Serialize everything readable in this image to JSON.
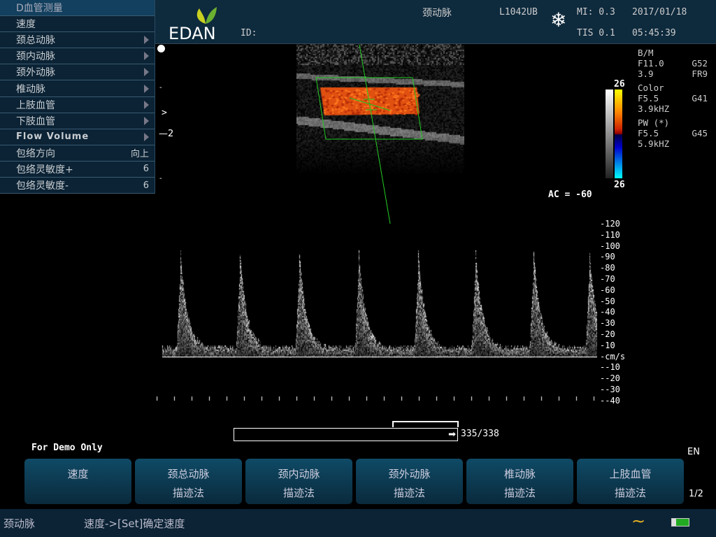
{
  "menu": {
    "title": "D血管测量",
    "items": [
      {
        "label": "速度",
        "arrow": false,
        "value": ""
      },
      {
        "label": "颈总动脉",
        "arrow": true,
        "value": ""
      },
      {
        "label": "颈内动脉",
        "arrow": true,
        "value": ""
      },
      {
        "label": "颈外动脉",
        "arrow": true,
        "value": ""
      },
      {
        "label": "椎动脉",
        "arrow": true,
        "value": ""
      },
      {
        "label": "上肢血管",
        "arrow": true,
        "value": ""
      },
      {
        "label": "下肢血管",
        "arrow": true,
        "value": ""
      },
      {
        "label": "Flow  Volume",
        "arrow": true,
        "value": ""
      },
      {
        "label": "包络方向",
        "arrow": false,
        "value": "向上"
      },
      {
        "label": "包络灵敏度+",
        "arrow": false,
        "value": "6"
      },
      {
        "label": "包络灵敏度-",
        "arrow": false,
        "value": "6"
      }
    ]
  },
  "header": {
    "logo": "EDAN",
    "id_label": "ID:",
    "exam": "颈动脉",
    "probe": "L1042UB",
    "mi": "MI: 0.3",
    "tis": "TIS 0.1",
    "date": "2017/01/18",
    "time": "05:45:39",
    "freeze_icon": "snowflake-icon"
  },
  "params": {
    "bm": "B/M",
    "bm_f": "F11.0",
    "bm_g": "G52",
    "bm_d": "3.9",
    "bm_fr": "FR9",
    "color": "Color",
    "color_f": "F5.5",
    "color_g": "G41",
    "color_prf": "3.9kHZ",
    "pw": "PW (*)",
    "pw_f": "F5.5",
    "pw_g": "G45",
    "pw_prf": "5.9kHZ"
  },
  "colorbar": {
    "top": "26",
    "bottom": "26"
  },
  "ac": "AC = -60",
  "depth": {
    "marker": ">",
    "label": "2"
  },
  "scale": {
    "labels": [
      "-120",
      "-110",
      "-100",
      "-90",
      "-80",
      "-70",
      "-60",
      "-50",
      "-40",
      "-30",
      "-20",
      "-10",
      "-cm/s",
      "--10",
      "--20",
      "--30",
      "--40"
    ]
  },
  "cine": {
    "progress": "335/338",
    "value": 335,
    "total": 338
  },
  "demo": "For Demo Only",
  "lang": "EN",
  "page": "1/2",
  "buttons": [
    [
      "速度",
      ""
    ],
    [
      "颈总动脉",
      "描迹法"
    ],
    [
      "颈内动脉",
      "描迹法"
    ],
    [
      "颈外动脉",
      "描迹法"
    ],
    [
      "椎动脉",
      "描迹法"
    ],
    [
      "上肢血管",
      "描迹法"
    ]
  ],
  "status": {
    "exam": "颈动脉",
    "hint": "速度->[Set]确定速度"
  },
  "colors": {
    "panel": "#0b2335",
    "header": "#0e2a3d",
    "roi": "#22cc22",
    "flow": "#e05010"
  }
}
